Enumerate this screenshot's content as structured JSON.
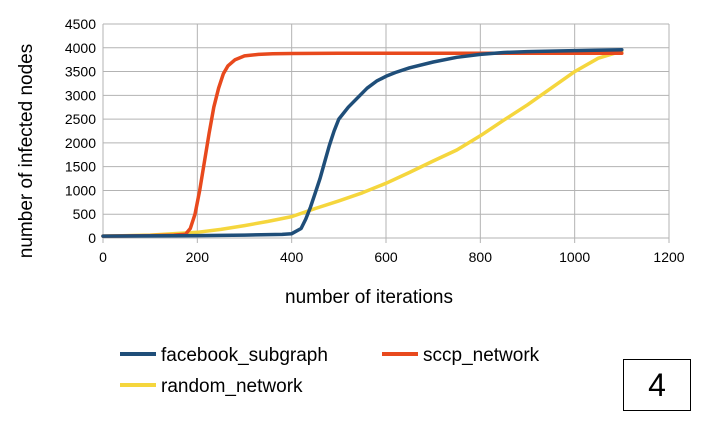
{
  "chart_data": {
    "type": "line",
    "xlabel": "number of iterations",
    "ylabel": "number of infected nodes",
    "xlim": [
      0,
      1200
    ],
    "ylim": [
      0,
      4500
    ],
    "xticks": [
      0,
      200,
      400,
      600,
      800,
      1000,
      1200
    ],
    "yticks": [
      0,
      500,
      1000,
      1500,
      2000,
      2500,
      3000,
      3500,
      4000,
      4500
    ],
    "grid": true,
    "legend_position": "bottom",
    "series": [
      {
        "name": "facebook_subgraph",
        "color": "#1f4e79",
        "x": [
          0,
          100,
          200,
          300,
          380,
          400,
          420,
          430,
          440,
          450,
          460,
          470,
          480,
          490,
          500,
          520,
          540,
          560,
          580,
          600,
          620,
          650,
          700,
          750,
          800,
          850,
          900,
          1000,
          1100
        ],
        "y": [
          40,
          45,
          50,
          60,
          75,
          90,
          200,
          400,
          650,
          950,
          1250,
          1600,
          1950,
          2250,
          2500,
          2750,
          2950,
          3150,
          3300,
          3400,
          3480,
          3580,
          3700,
          3800,
          3860,
          3900,
          3920,
          3940,
          3960
        ]
      },
      {
        "name": "sccp_network",
        "color": "#e8491d",
        "x": [
          0,
          100,
          150,
          175,
          185,
          195,
          205,
          215,
          225,
          235,
          245,
          255,
          265,
          280,
          300,
          330,
          360,
          400,
          500,
          600,
          800,
          1000,
          1100
        ],
        "y": [
          40,
          50,
          60,
          80,
          200,
          500,
          1000,
          1600,
          2200,
          2750,
          3150,
          3450,
          3620,
          3750,
          3830,
          3860,
          3875,
          3880,
          3885,
          3885,
          3885,
          3885,
          3885
        ]
      },
      {
        "name": "random_network",
        "color": "#f5d63d",
        "x": [
          0,
          100,
          200,
          250,
          300,
          350,
          400,
          450,
          500,
          550,
          600,
          650,
          700,
          750,
          800,
          850,
          900,
          950,
          1000,
          1050,
          1100
        ],
        "y": [
          40,
          60,
          120,
          180,
          260,
          350,
          450,
          620,
          780,
          950,
          1150,
          1380,
          1620,
          1850,
          2150,
          2480,
          2800,
          3150,
          3500,
          3780,
          3930
        ]
      }
    ]
  },
  "badge": {
    "label": "4"
  }
}
